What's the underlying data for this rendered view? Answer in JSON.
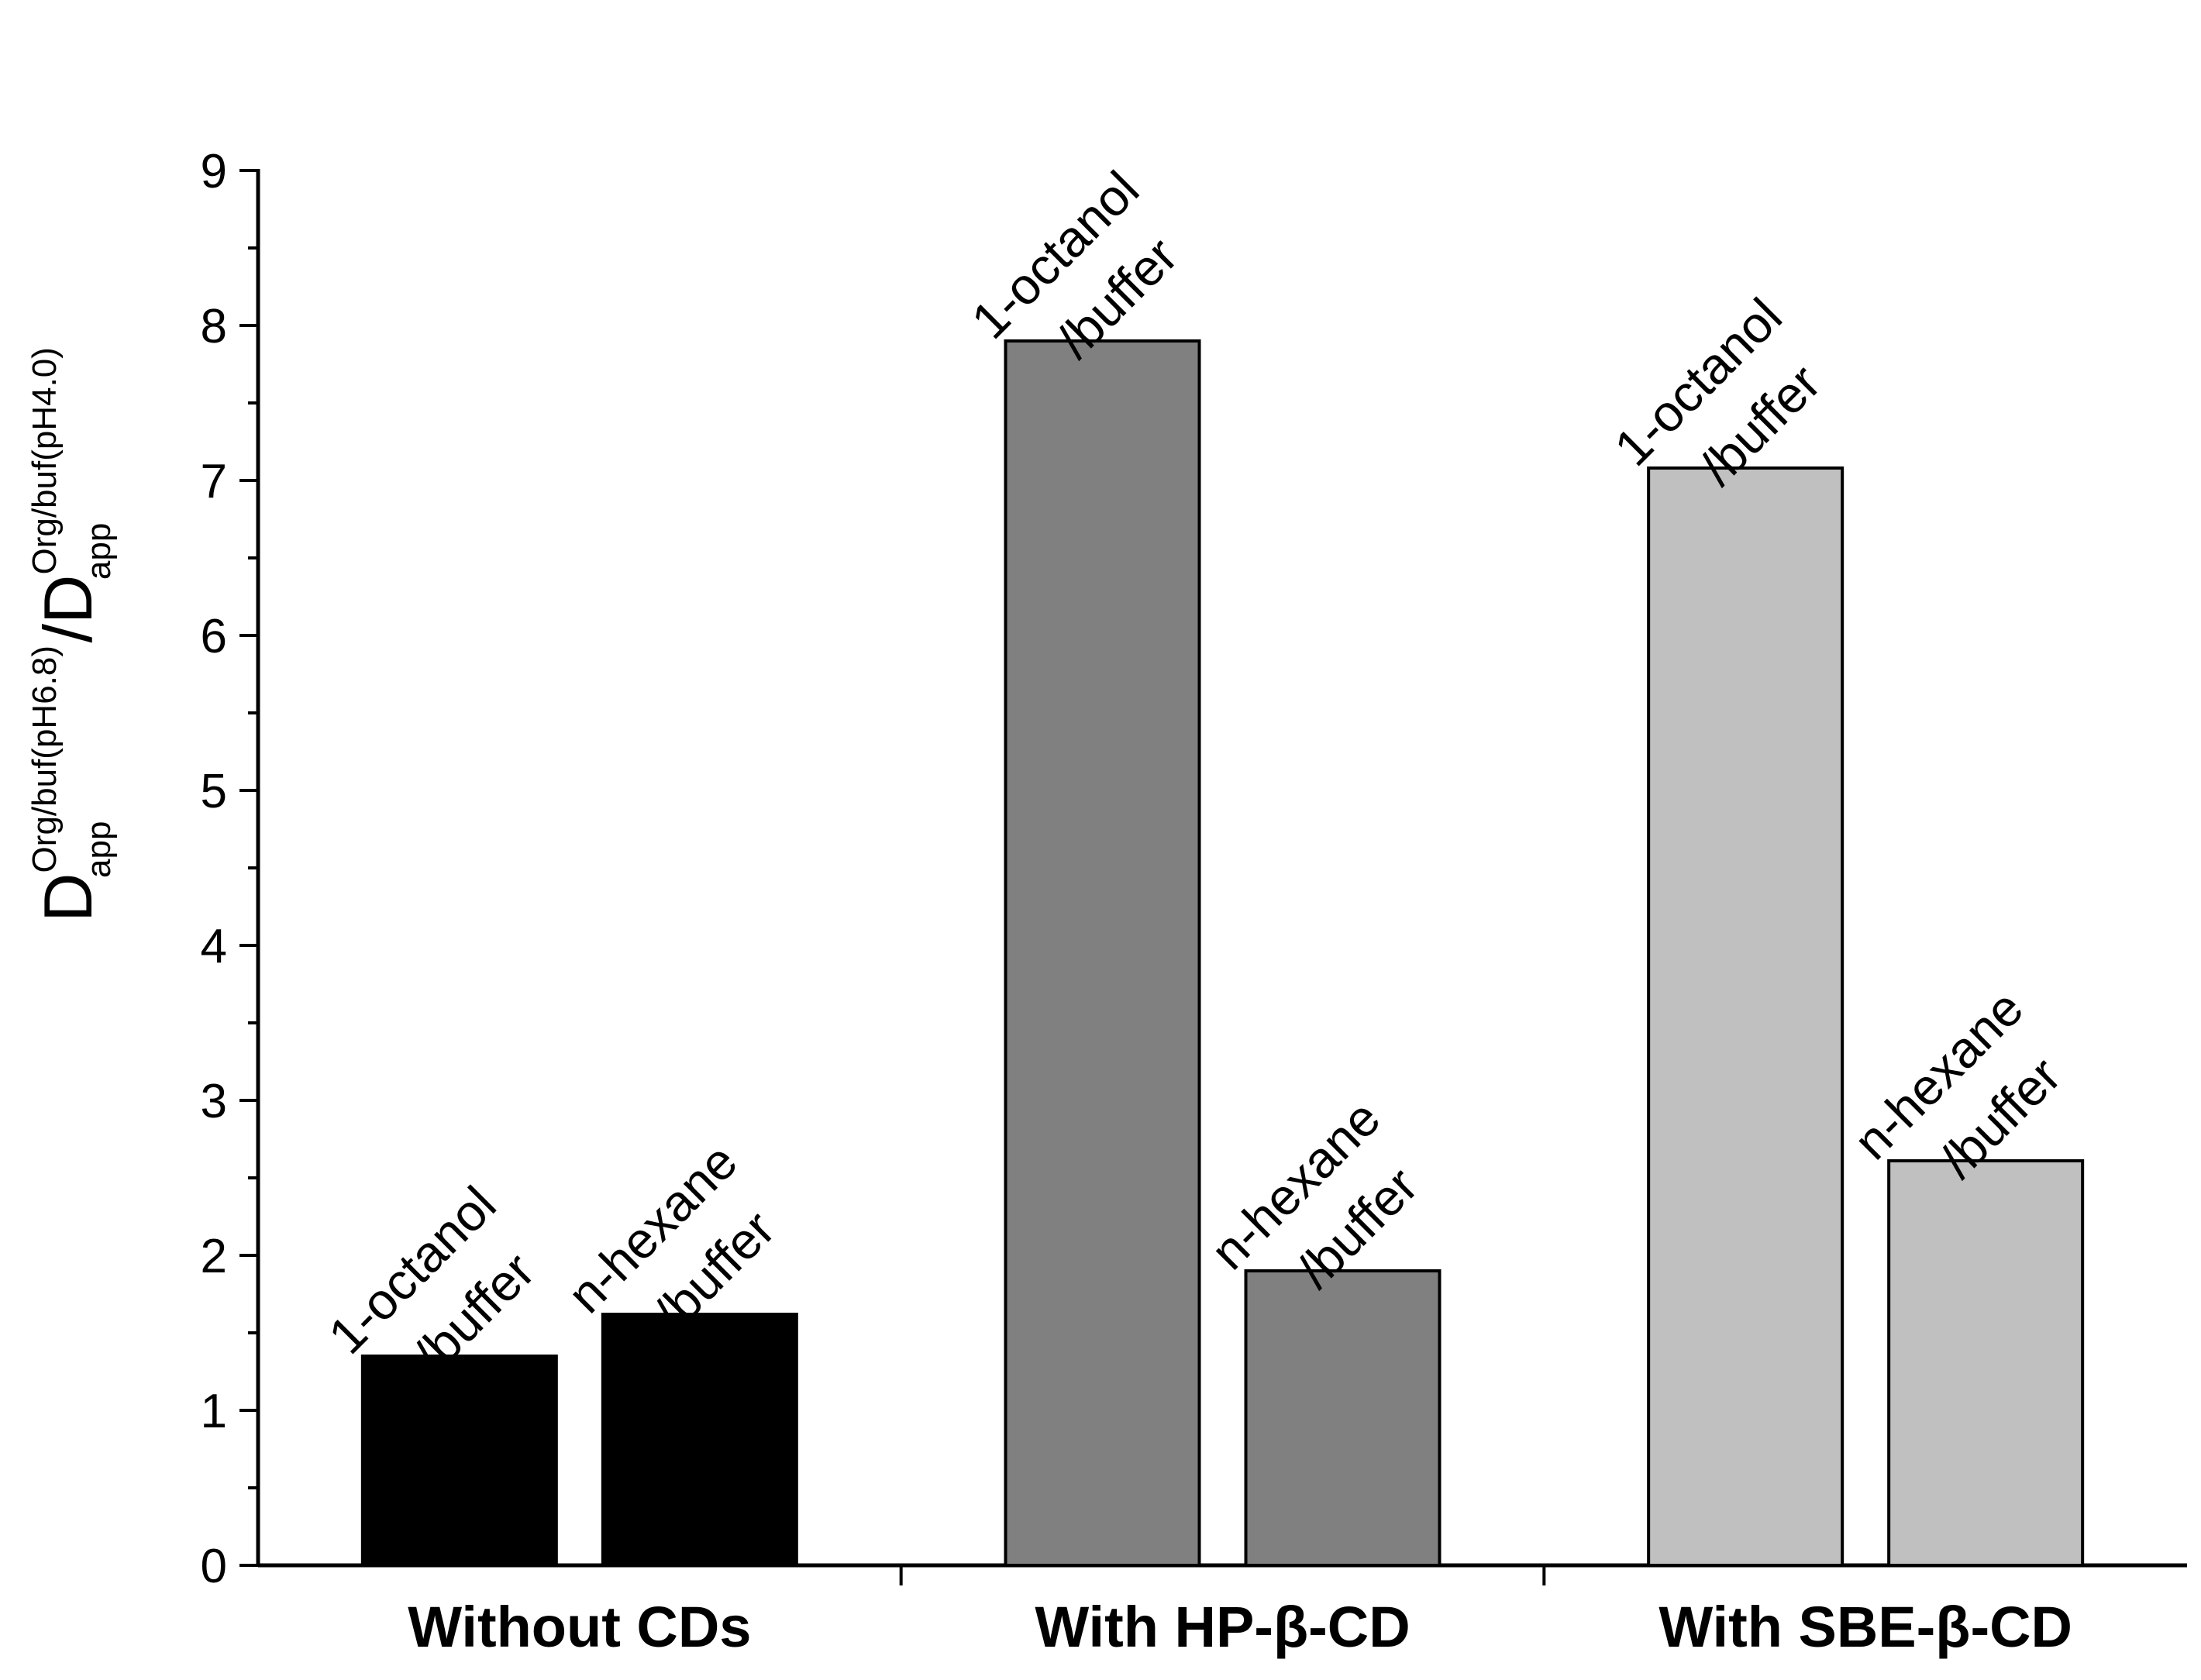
{
  "chart_data": {
    "type": "bar",
    "title": "",
    "xlabel": "",
    "ylabel": {
      "symbol": "D",
      "num_sup": "Org/buf(pH6.8)",
      "num_sub": "app",
      "slash": "/",
      "den_sup": "Org/buf(pH4.0)",
      "den_sub": "app"
    },
    "ylim": [
      0,
      9
    ],
    "yticks": [
      "0",
      "1",
      "2",
      "3",
      "4",
      "5",
      "6",
      "7",
      "8",
      "9"
    ],
    "grid": false,
    "legend": "none",
    "groups": [
      {
        "name": "Without CDs",
        "color": "#000000",
        "bars": [
          {
            "label_line1": "1-octanol",
            "label_line2": "/buffer",
            "value": 1.35
          },
          {
            "label_line1": "n-hexane",
            "label_line2": "/buffer",
            "value": 1.62
          }
        ]
      },
      {
        "name": "With HP-β-CD",
        "color": "#808080",
        "bars": [
          {
            "label_line1": "1-octanol",
            "label_line2": "/buffer",
            "value": 7.9
          },
          {
            "label_line1": "n-hexane",
            "label_line2": "/buffer",
            "value": 1.9
          }
        ]
      },
      {
        "name": "With SBE-β-CD",
        "color": "#c0c0c0",
        "bars": [
          {
            "label_line1": "1-octanol",
            "label_line2": "/buffer",
            "value": 7.08
          },
          {
            "label_line1": "n-hexane",
            "label_line2": "/buffer",
            "value": 2.61
          }
        ]
      }
    ]
  }
}
